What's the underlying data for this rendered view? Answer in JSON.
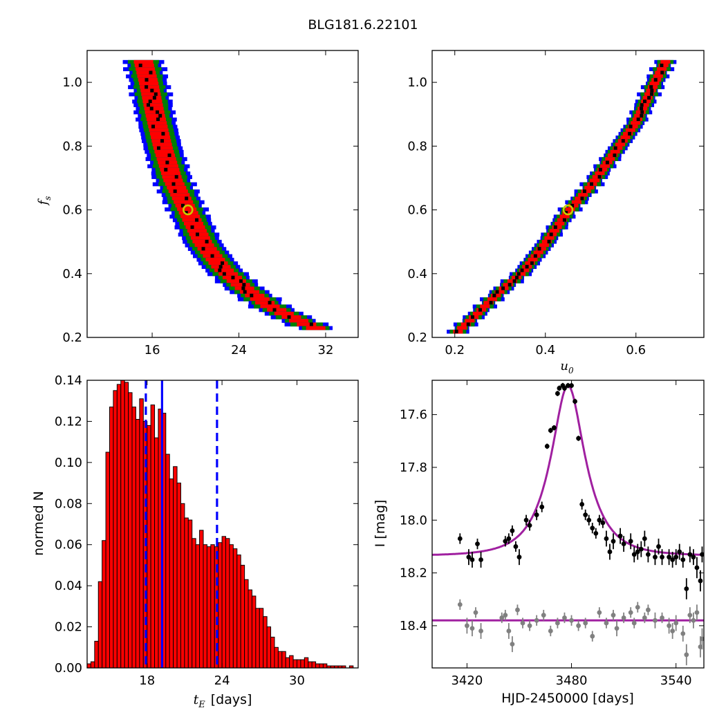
{
  "title": "BLG181.6.22101",
  "chart_data": [
    {
      "type": "heatmap",
      "panel": "top-left",
      "ylabel_symbol": "f",
      "ylabel_sub": "s",
      "xlim": [
        10,
        35
      ],
      "ylim": [
        0.2,
        1.1
      ],
      "xticks": [
        16,
        24,
        32
      ],
      "yticks": [
        "0.2",
        "0.4",
        "0.6",
        "0.8",
        "1.0"
      ],
      "best_fit": {
        "x": 19.3,
        "y": 0.6
      },
      "ridge": [
        [
          15.2,
          1.07
        ],
        [
          15.7,
          1.0
        ],
        [
          16.3,
          0.9
        ],
        [
          17.0,
          0.8
        ],
        [
          17.9,
          0.7
        ],
        [
          19.3,
          0.6
        ],
        [
          20.7,
          0.5
        ],
        [
          22.5,
          0.42
        ],
        [
          24.5,
          0.36
        ],
        [
          27.0,
          0.3
        ],
        [
          30.0,
          0.25
        ],
        [
          31.5,
          0.23
        ]
      ],
      "colors": {
        "level3": "#0000ff",
        "level2": "#008000",
        "level1": "#ff0000",
        "points": "#000000",
        "marker": "#cccc00"
      }
    },
    {
      "type": "heatmap",
      "panel": "top-right",
      "xlabel_symbol": "u",
      "xlabel_sub": "0",
      "xlim": [
        0.15,
        0.75
      ],
      "ylim": [
        0.2,
        1.1
      ],
      "xticks": [
        "0.2",
        "0.4",
        "0.6"
      ],
      "yticks": [
        "0.2",
        "0.4",
        "0.6",
        "0.8",
        "1.0"
      ],
      "best_fit": {
        "x": 0.45,
        "y": 0.6
      },
      "ridge": [
        [
          0.2,
          0.215
        ],
        [
          0.25,
          0.28
        ],
        [
          0.3,
          0.35
        ],
        [
          0.35,
          0.41
        ],
        [
          0.4,
          0.5
        ],
        [
          0.45,
          0.6
        ],
        [
          0.5,
          0.68
        ],
        [
          0.55,
          0.78
        ],
        [
          0.6,
          0.88
        ],
        [
          0.64,
          1.0
        ],
        [
          0.665,
          1.07
        ]
      ]
    },
    {
      "type": "bar",
      "panel": "bottom-left",
      "ylabel": "normed N",
      "xlabel_symbol": "t",
      "xlabel_sub": "E",
      "xlabel_unit": "[days]",
      "xlim": [
        13.2,
        34.9
      ],
      "ylim": [
        0,
        0.14
      ],
      "xticks": [
        "18",
        "24",
        "30"
      ],
      "yticks": [
        "0.00",
        "0.02",
        "0.04",
        "0.06",
        "0.08",
        "0.10",
        "0.12",
        "0.14"
      ],
      "bin_start": 13.2,
      "bin_width": 0.3,
      "values": [
        0.002,
        0.003,
        0.013,
        0.042,
        0.062,
        0.105,
        0.127,
        0.135,
        0.138,
        0.14,
        0.139,
        0.134,
        0.127,
        0.121,
        0.131,
        0.12,
        0.118,
        0.128,
        0.112,
        0.126,
        0.124,
        0.104,
        0.092,
        0.098,
        0.09,
        0.08,
        0.073,
        0.072,
        0.063,
        0.06,
        0.067,
        0.06,
        0.059,
        0.06,
        0.059,
        0.061,
        0.064,
        0.063,
        0.06,
        0.058,
        0.055,
        0.05,
        0.043,
        0.038,
        0.035,
        0.029,
        0.029,
        0.025,
        0.02,
        0.015,
        0.01,
        0.008,
        0.008,
        0.005,
        0.006,
        0.004,
        0.004,
        0.004,
        0.005,
        0.003,
        0.003,
        0.002,
        0.002,
        0.002,
        0.001,
        0.001,
        0.001,
        0.001,
        0.001,
        0.0,
        0.001,
        0.0
      ],
      "bar_color": "#ff0000",
      "vlines": [
        {
          "x": 19.2,
          "style": "solid",
          "color": "#0000ff"
        },
        {
          "x": 17.9,
          "style": "dashed",
          "color": "#0000ff"
        },
        {
          "x": 23.6,
          "style": "dashed",
          "color": "#0000ff"
        }
      ]
    },
    {
      "type": "scatter",
      "panel": "bottom-right",
      "xlabel": "HJD-2450000 [days]",
      "ylabel": "I [mag]",
      "xlim": [
        3400,
        3556
      ],
      "ylim": [
        18.56,
        17.47
      ],
      "xticks": [
        "3420",
        "3480",
        "3540"
      ],
      "yticks": [
        "17.6",
        "17.8",
        "18.0",
        "18.2",
        "18.4"
      ],
      "model": {
        "baseline": 18.135,
        "peak_mag": 17.49,
        "t0": 3478,
        "tE": 19.2,
        "u0": 0.45,
        "fs": 0.6,
        "color": "#a020a0"
      },
      "series": [
        {
          "color": "#000000",
          "points": [
            [
              3416,
              18.07,
              0.02
            ],
            [
              3421,
              18.14,
              0.03
            ],
            [
              3423,
              18.15,
              0.03
            ],
            [
              3426,
              18.09,
              0.02
            ],
            [
              3428,
              18.15,
              0.03
            ],
            [
              3442,
              18.08,
              0.02
            ],
            [
              3444,
              18.07,
              0.02
            ],
            [
              3446,
              18.04,
              0.02
            ],
            [
              3448,
              18.1,
              0.02
            ],
            [
              3450,
              18.14,
              0.03
            ],
            [
              3454,
              18.0,
              0.02
            ],
            [
              3456,
              18.02,
              0.02
            ],
            [
              3460,
              17.98,
              0.02
            ],
            [
              3463,
              17.95,
              0.02
            ],
            [
              3466,
              17.72,
              0.01
            ],
            [
              3468,
              17.66,
              0.01
            ],
            [
              3470,
              17.65,
              0.01
            ],
            [
              3472,
              17.52,
              0.01
            ],
            [
              3473,
              17.5,
              0.01
            ],
            [
              3475,
              17.49,
              0.01
            ],
            [
              3476,
              17.5,
              0.01
            ],
            [
              3478,
              17.49,
              0.01
            ],
            [
              3480,
              17.49,
              0.01
            ],
            [
              3482,
              17.55,
              0.01
            ],
            [
              3484,
              17.69,
              0.01
            ],
            [
              3486,
              17.94,
              0.02
            ],
            [
              3488,
              17.98,
              0.02
            ],
            [
              3490,
              18.0,
              0.02
            ],
            [
              3492,
              18.03,
              0.02
            ],
            [
              3494,
              18.05,
              0.02
            ],
            [
              3496,
              18.0,
              0.02
            ],
            [
              3498,
              18.01,
              0.02
            ],
            [
              3500,
              18.07,
              0.03
            ],
            [
              3502,
              18.12,
              0.03
            ],
            [
              3504,
              18.08,
              0.03
            ],
            [
              3508,
              18.06,
              0.03
            ],
            [
              3510,
              18.09,
              0.03
            ],
            [
              3514,
              18.08,
              0.03
            ],
            [
              3516,
              18.13,
              0.03
            ],
            [
              3518,
              18.12,
              0.03
            ],
            [
              3520,
              18.11,
              0.03
            ],
            [
              3522,
              18.07,
              0.03
            ],
            [
              3524,
              18.13,
              0.03
            ],
            [
              3528,
              18.14,
              0.03
            ],
            [
              3530,
              18.1,
              0.03
            ],
            [
              3532,
              18.14,
              0.03
            ],
            [
              3536,
              18.14,
              0.03
            ],
            [
              3538,
              18.15,
              0.03
            ],
            [
              3540,
              18.14,
              0.03
            ],
            [
              3542,
              18.12,
              0.03
            ],
            [
              3544,
              18.15,
              0.03
            ],
            [
              3546,
              18.26,
              0.04
            ],
            [
              3548,
              18.13,
              0.03
            ],
            [
              3550,
              18.14,
              0.03
            ],
            [
              3552,
              18.18,
              0.04
            ],
            [
              3554,
              18.23,
              0.04
            ],
            [
              3555,
              18.13,
              0.03
            ]
          ]
        },
        {
          "color": "#808080",
          "baseline": 18.38,
          "points": [
            [
              3416,
              18.32,
              0.02
            ],
            [
              3420,
              18.4,
              0.03
            ],
            [
              3423,
              18.41,
              0.03
            ],
            [
              3425,
              18.35,
              0.02
            ],
            [
              3428,
              18.42,
              0.03
            ],
            [
              3440,
              18.37,
              0.02
            ],
            [
              3442,
              18.36,
              0.02
            ],
            [
              3444,
              18.42,
              0.03
            ],
            [
              3446,
              18.47,
              0.03
            ],
            [
              3449,
              18.34,
              0.02
            ],
            [
              3452,
              18.39,
              0.02
            ],
            [
              3456,
              18.4,
              0.02
            ],
            [
              3460,
              18.38,
              0.02
            ],
            [
              3464,
              18.36,
              0.02
            ],
            [
              3468,
              18.42,
              0.02
            ],
            [
              3472,
              18.39,
              0.02
            ],
            [
              3476,
              18.37,
              0.02
            ],
            [
              3480,
              18.38,
              0.02
            ],
            [
              3484,
              18.4,
              0.02
            ],
            [
              3488,
              18.39,
              0.02
            ],
            [
              3492,
              18.44,
              0.02
            ],
            [
              3496,
              18.35,
              0.02
            ],
            [
              3500,
              18.39,
              0.02
            ],
            [
              3504,
              18.36,
              0.02
            ],
            [
              3506,
              18.41,
              0.03
            ],
            [
              3510,
              18.37,
              0.02
            ],
            [
              3514,
              18.35,
              0.02
            ],
            [
              3516,
              18.39,
              0.02
            ],
            [
              3518,
              18.33,
              0.02
            ],
            [
              3522,
              18.37,
              0.02
            ],
            [
              3524,
              18.34,
              0.02
            ],
            [
              3528,
              18.38,
              0.03
            ],
            [
              3532,
              18.37,
              0.02
            ],
            [
              3536,
              18.4,
              0.03
            ],
            [
              3538,
              18.42,
              0.03
            ],
            [
              3540,
              18.39,
              0.03
            ],
            [
              3544,
              18.43,
              0.03
            ],
            [
              3546,
              18.51,
              0.04
            ],
            [
              3548,
              18.36,
              0.03
            ],
            [
              3550,
              18.38,
              0.03
            ],
            [
              3552,
              18.35,
              0.03
            ],
            [
              3554,
              18.48,
              0.04
            ],
            [
              3555,
              18.45,
              0.04
            ]
          ]
        }
      ]
    }
  ]
}
